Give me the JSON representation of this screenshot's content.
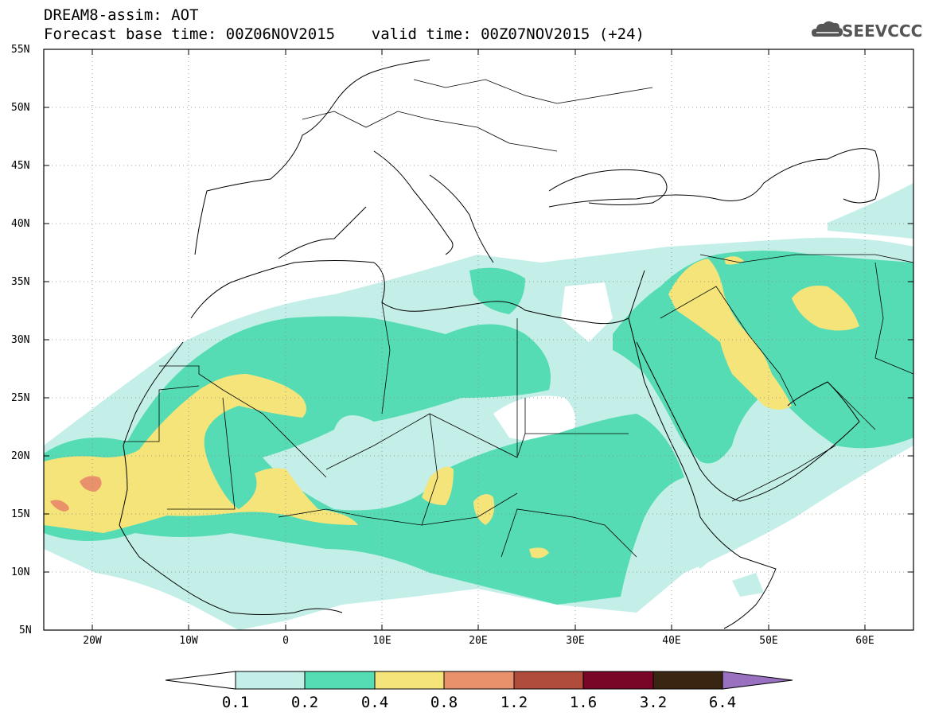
{
  "header": {
    "line1": "DREAM8-assim: AOT",
    "line2": "Forecast base time: 00Z06NOV2015    valid time: 00Z07NOV2015 (+24)"
  },
  "logo": {
    "text": "SEEVCCC",
    "icon": "cloud-icon"
  },
  "map": {
    "variable": "AOT",
    "lon_range": [
      -25,
      65
    ],
    "lat_range": [
      5,
      55
    ],
    "lat_labels": [
      "55N",
      "50N",
      "45N",
      "40N",
      "35N",
      "30N",
      "25N",
      "20N",
      "15N",
      "10N",
      "5N"
    ],
    "lon_labels": [
      "20W",
      "10W",
      "0",
      "10E",
      "20E",
      "30E",
      "40E",
      "50E",
      "60E"
    ]
  },
  "colorbar": {
    "levels": [
      "0.1",
      "0.2",
      "0.4",
      "0.8",
      "1.2",
      "1.6",
      "3.2",
      "6.4"
    ],
    "colors": [
      "#ffffff",
      "#c4efe9",
      "#55dcb4",
      "#f5e47a",
      "#e8916b",
      "#b04c3b",
      "#7a0627",
      "#3a2412",
      "#9a70c0"
    ]
  }
}
